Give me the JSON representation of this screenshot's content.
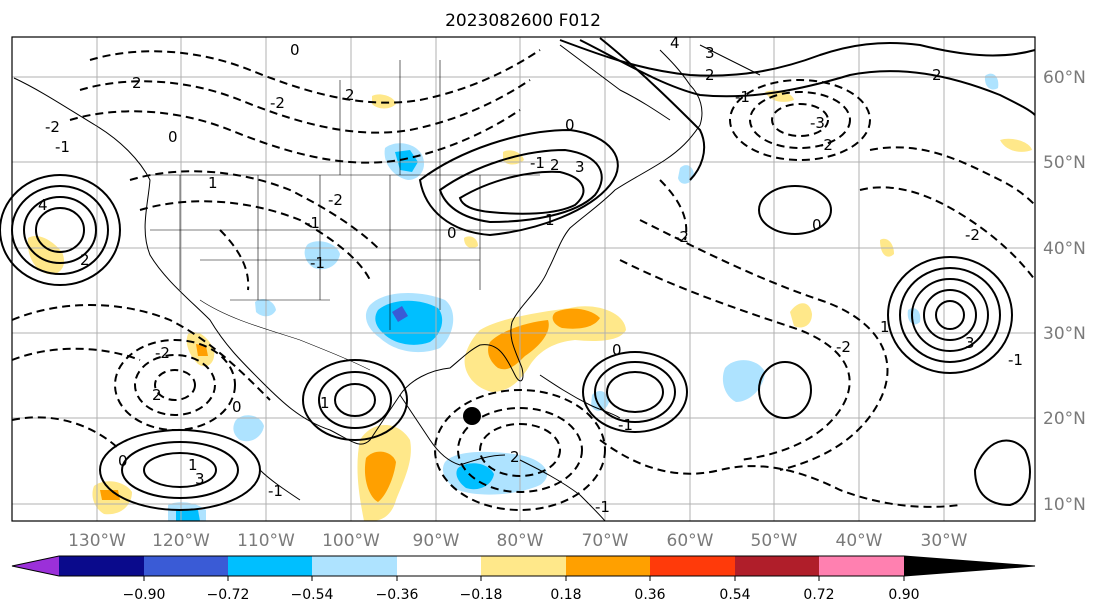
{
  "title": "2023082600 F012",
  "longitude_labels": [
    "130°W",
    "120°W",
    "110°W",
    "100°W",
    "90°W",
    "80°W",
    "70°W",
    "60°W",
    "50°W",
    "40°W",
    "30°W"
  ],
  "latitude_labels": [
    "60°N",
    "50°N",
    "40°N",
    "30°N",
    "20°N",
    "10°N"
  ],
  "colorbar": {
    "tick_labels": [
      "−0.90",
      "−0.72",
      "−0.54",
      "−0.36",
      "−0.18",
      "0.18",
      "0.36",
      "0.54",
      "0.72",
      "0.90"
    ],
    "colors": [
      "#9b30d9",
      "#0a0a8c",
      "#3a5bd6",
      "#00bfff",
      "#aee3ff",
      "#ffffff",
      "#ffe88a",
      "#ffa000",
      "#ff3a0a",
      "#b01e2a",
      "#ff80b0"
    ]
  },
  "contour_labels": [
    "0",
    "-2",
    "2",
    "4",
    "-1",
    "-2",
    "2",
    "-2",
    "0",
    "1",
    "-1",
    "2",
    "-1",
    "0",
    "1",
    "0",
    "-1",
    "2",
    "3",
    "0",
    "-2",
    "-1",
    "2",
    "4",
    "3",
    "-1",
    "-3",
    "-2",
    "0",
    "3",
    "-2",
    "1",
    "-2",
    "2",
    "-1",
    "2",
    "0",
    "1",
    "-2",
    "0",
    "-1",
    "1",
    "2",
    "-1",
    "3"
  ],
  "map_features": {
    "grid_lines": true,
    "coastlines": true,
    "state_borders": true,
    "marker": "storm-center"
  }
}
